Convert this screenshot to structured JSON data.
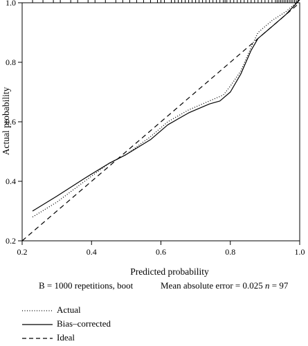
{
  "chart_data": {
    "type": "line",
    "xlabel": "Predicted probability",
    "ylabel": "Actual probability",
    "xlim": [
      0.2,
      1.0
    ],
    "ylim": [
      0.2,
      1.0
    ],
    "x_ticks": [
      "0.2",
      "0.4",
      "0.6",
      "0.8",
      "1.0"
    ],
    "y_ticks": [
      "0.2",
      "0.4",
      "0.6",
      "0.8",
      "1.0"
    ],
    "grid": false,
    "legend_position": "bottom-left",
    "series": [
      {
        "name": "Actual",
        "style": "dotted",
        "x": [
          0.23,
          0.3,
          0.38,
          0.45,
          0.5,
          0.57,
          0.62,
          0.68,
          0.74,
          0.78,
          0.8,
          0.83,
          0.86,
          0.88,
          0.92,
          0.96,
          1.0
        ],
        "y": [
          0.28,
          0.33,
          0.4,
          0.46,
          0.49,
          0.55,
          0.6,
          0.64,
          0.67,
          0.69,
          0.72,
          0.77,
          0.85,
          0.9,
          0.94,
          0.97,
          1.01
        ]
      },
      {
        "name": "Bias–corrected",
        "style": "solid",
        "x": [
          0.23,
          0.3,
          0.38,
          0.45,
          0.5,
          0.57,
          0.62,
          0.68,
          0.74,
          0.77,
          0.8,
          0.83,
          0.86,
          0.88,
          0.92,
          0.96,
          1.0
        ],
        "y": [
          0.3,
          0.35,
          0.41,
          0.46,
          0.49,
          0.54,
          0.59,
          0.63,
          0.66,
          0.67,
          0.7,
          0.76,
          0.84,
          0.88,
          0.92,
          0.96,
          1.01
        ]
      },
      {
        "name": "Ideal",
        "style": "dashed",
        "x": [
          0.2,
          1.0
        ],
        "y": [
          0.2,
          1.0
        ]
      }
    ],
    "rug_x": [
      0.23,
      0.26,
      0.29,
      0.31,
      0.34,
      0.36,
      0.39,
      0.41,
      0.44,
      0.47,
      0.49,
      0.51,
      0.53,
      0.55,
      0.57,
      0.59,
      0.6,
      0.61,
      0.63,
      0.64,
      0.65,
      0.66,
      0.67,
      0.68,
      0.69,
      0.7,
      0.71,
      0.72,
      0.73,
      0.74,
      0.75,
      0.76,
      0.77,
      0.78,
      0.785,
      0.79,
      0.8,
      0.81,
      0.82,
      0.83,
      0.84,
      0.85,
      0.86,
      0.87,
      0.88,
      0.89,
      0.9,
      0.91,
      0.92,
      0.93,
      0.935,
      0.94,
      0.945,
      0.95,
      0.955,
      0.96,
      0.965,
      0.97,
      0.975,
      0.98,
      0.985,
      0.99,
      0.995
    ]
  },
  "footer": {
    "boot_text": "B = 1000 repetitions, boot",
    "mae_text": "Mean absolute error = 0.025",
    "n_label": "n",
    "n_text": "= 97"
  },
  "legend": [
    {
      "label": "Actual",
      "style": "dotted"
    },
    {
      "label": "Bias–corrected",
      "style": "solid"
    },
    {
      "label": "Ideal",
      "style": "dashed"
    }
  ]
}
